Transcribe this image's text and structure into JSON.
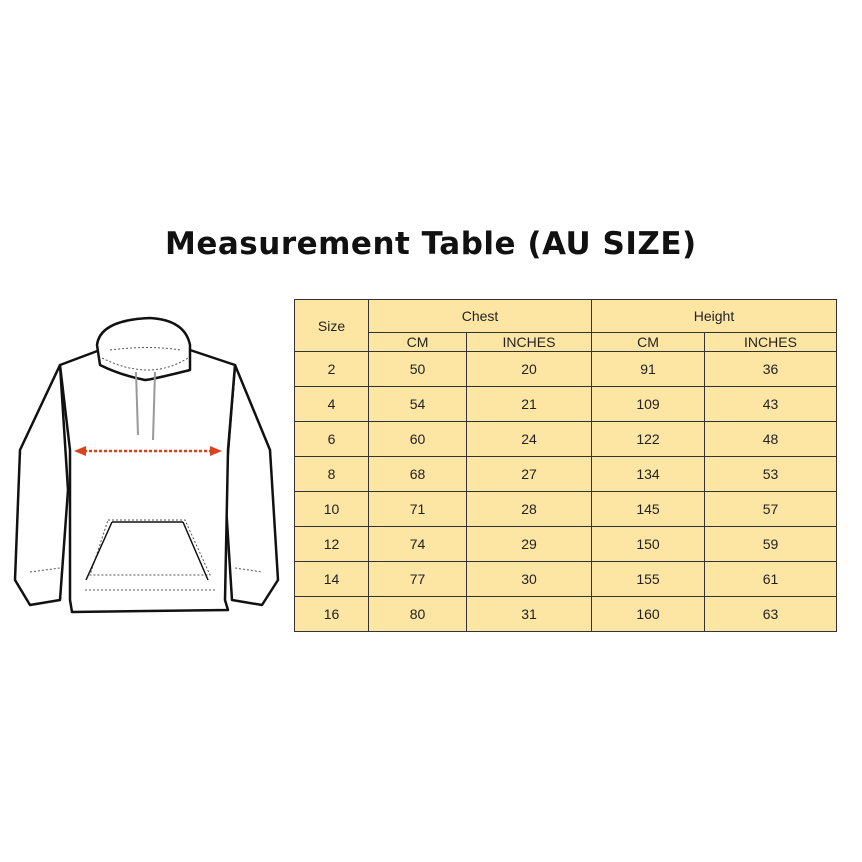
{
  "title": "Measurement Table (AU SIZE)",
  "table": {
    "size_header": "Size",
    "groups": [
      "Chest",
      "Height"
    ],
    "subheaders": [
      "CM",
      "INCHES",
      "CM",
      "INCHES"
    ],
    "rows": [
      [
        "2",
        "50",
        "20",
        "91",
        "36"
      ],
      [
        "4",
        "54",
        "21",
        "109",
        "43"
      ],
      [
        "6",
        "60",
        "24",
        "122",
        "48"
      ],
      [
        "8",
        "68",
        "27",
        "134",
        "53"
      ],
      [
        "10",
        "71",
        "28",
        "145",
        "57"
      ],
      [
        "12",
        "74",
        "29",
        "150",
        "59"
      ],
      [
        "14",
        "77",
        "30",
        "155",
        "61"
      ],
      [
        "16",
        "80",
        "31",
        "160",
        "63"
      ]
    ],
    "fill_color": "#fde6a3"
  },
  "illustration": {
    "arrow_color": "#d9441f"
  }
}
